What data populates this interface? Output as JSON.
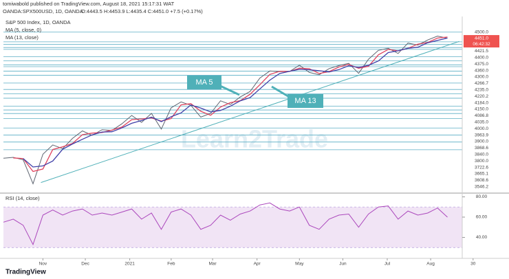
{
  "header": {
    "publisher": "tomiwabold published on TradingView.com, August 18, 2021 15:17:31 WAT",
    "symbol": "OANDA:SPX500USD, 1D, OANDA",
    "ohlc": "O:4443.5 H:4453.9 L:4435.4 C:4451.0 +7.5 (+0.17%)"
  },
  "chart_data": [
    {
      "type": "line",
      "xlim": [
        0,
        46.5
      ],
      "ylim": [
        3200,
        4560
      ],
      "series": [
        {
          "name": "S&P 500 Index, 1D, OANDA",
          "color": "#5d6470",
          "values": [
            3477,
            3484,
            3465,
            3270,
            3510,
            3585,
            3555,
            3638,
            3699,
            3663,
            3709,
            3703,
            3756,
            3824,
            3768,
            3841,
            3714,
            3886,
            3934,
            3906,
            3811,
            3841,
            3943,
            3913,
            3974,
            4019,
            4128,
            4185,
            4180,
            4181,
            4232,
            4173,
            4155,
            4204,
            4229,
            4247,
            4166,
            4280,
            4352,
            4369,
            4327,
            4411,
            4395,
            4436,
            4468,
            4451
          ]
        },
        {
          "name": "MA (5, close, 0)",
          "color": "#e0445e",
          "values": [
            null,
            3480,
            3475,
            3370,
            3390,
            3548,
            3570,
            3597,
            3668,
            3681,
            3686,
            3706,
            3730,
            3790,
            3796,
            3805,
            3778,
            3800,
            3910,
            3920,
            3858,
            3826,
            3892,
            3928,
            3944,
            3996,
            4074,
            4157,
            4182,
            4181,
            4207,
            4203,
            4164,
            4180,
            4217,
            4238,
            4207,
            4223,
            4316,
            4360,
            4348,
            4369,
            4403,
            4416,
            4452,
            4460
          ]
        },
        {
          "name": "MA (13, close)",
          "color": "#3f3fa8",
          "values": [
            null,
            null,
            3475,
            3406,
            3415,
            3455,
            3550,
            3593,
            3631,
            3667,
            3690,
            3692,
            3723,
            3761,
            3783,
            3811,
            3774,
            3814,
            3845,
            3909,
            3884,
            3853,
            3865,
            3899,
            3943,
            3969,
            4040,
            4111,
            4164,
            4182,
            4198,
            4195,
            4187,
            4177,
            4196,
            4227,
            4214,
            4231,
            4266,
            4334,
            4349,
            4369,
            4378,
            4414,
            4433,
            4452
          ]
        }
      ],
      "levels": [
        {
          "value": 4500,
          "label": "4500.0"
        },
        {
          "value": 4421.5,
          "label": "4421.5"
        },
        {
          "value": 4400,
          "label": "4400.0"
        },
        {
          "value": 4375,
          "label": "4375.0"
        },
        {
          "value": 4360,
          "label": "4360.0"
        },
        {
          "value": 4300,
          "label": "4300.0"
        },
        {
          "value": 4266.7,
          "label": "4266.7"
        },
        {
          "value": 4235,
          "label": "4235.0"
        },
        {
          "value": 4220.2,
          "label": "4220.2"
        },
        {
          "value": 4184,
          "label": "4184.0"
        },
        {
          "value": 4150,
          "label": "4150.0"
        },
        {
          "value": 4086.8,
          "label": "4086.8"
        },
        {
          "value": 4035,
          "label": "4035.0"
        },
        {
          "value": 4000,
          "label": "4000.0"
        },
        {
          "value": 3963.9,
          "label": "3963.9"
        },
        {
          "value": 3900,
          "label": "3900.0"
        },
        {
          "value": 3868.6,
          "label": "3868.6"
        },
        {
          "value": 3840,
          "label": "3840.0"
        },
        {
          "value": 3800,
          "label": "3800.0"
        },
        {
          "value": 3722.6,
          "label": "3722.6"
        },
        {
          "value": 3665.1,
          "label": "3665.1"
        },
        {
          "value": 3608.6,
          "label": "3608.6"
        },
        {
          "value": 3546.2,
          "label": "3546.2"
        }
      ],
      "level_color": "#5aaec4",
      "last_price": {
        "value": 4451,
        "label": "4451.0"
      },
      "countdown": "06:42:32",
      "trendline": {
        "x": [
          3.8,
          46.2
        ],
        "y": [
          3280,
          4425
        ],
        "color": "#4fb0b8"
      },
      "annotations": [
        "MA 5",
        "MA 13"
      ],
      "watermark": "Learn2Trade"
    },
    {
      "type": "line",
      "title": "RSI (14, close)",
      "color": "#ab47bc",
      "xlim": [
        0,
        46.5
      ],
      "ylim": [
        20,
        83
      ],
      "yticks": [
        {
          "value": 80,
          "label": "80.00"
        },
        {
          "value": 60,
          "label": "60.00"
        },
        {
          "value": 40,
          "label": "40.00"
        }
      ],
      "band": [
        30,
        70
      ],
      "xticks": [
        {
          "value": 4,
          "label": "Nov"
        },
        {
          "value": 8.3,
          "label": "Dec"
        },
        {
          "value": 12.8,
          "label": "2021"
        },
        {
          "value": 17,
          "label": "Feb"
        },
        {
          "value": 21.2,
          "label": "Mar"
        },
        {
          "value": 25.7,
          "label": "Apr"
        },
        {
          "value": 30,
          "label": "May"
        },
        {
          "value": 34.4,
          "label": "Jun"
        },
        {
          "value": 38.9,
          "label": "Jul"
        },
        {
          "value": 43.3,
          "label": "Aug"
        },
        {
          "value": 47.6,
          "label": "30"
        }
      ],
      "values": [
        55,
        58,
        52,
        33,
        62,
        67,
        62,
        66,
        68,
        62,
        64,
        62,
        65,
        68,
        58,
        64,
        48,
        65,
        68,
        62,
        48,
        52,
        62,
        57,
        63,
        66,
        72,
        74,
        68,
        66,
        70,
        52,
        48,
        58,
        62,
        63,
        50,
        63,
        70,
        71,
        58,
        66,
        62,
        64,
        69,
        60
      ]
    }
  ],
  "footer": {
    "brand": "TradingView"
  }
}
